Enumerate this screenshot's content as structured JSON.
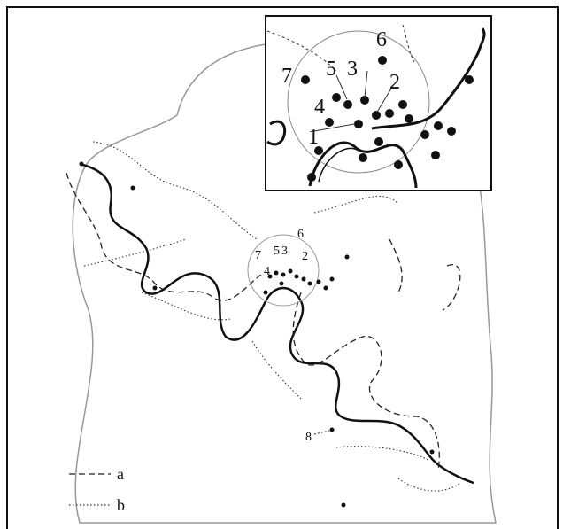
{
  "inset": {
    "labels": [
      "6",
      "7",
      "5",
      "3",
      "2",
      "4",
      "1"
    ]
  },
  "map": {
    "labels": [
      "6",
      "7",
      "5",
      "3",
      "2",
      "4",
      "8"
    ]
  },
  "legend": {
    "items": [
      "a",
      "b"
    ]
  }
}
